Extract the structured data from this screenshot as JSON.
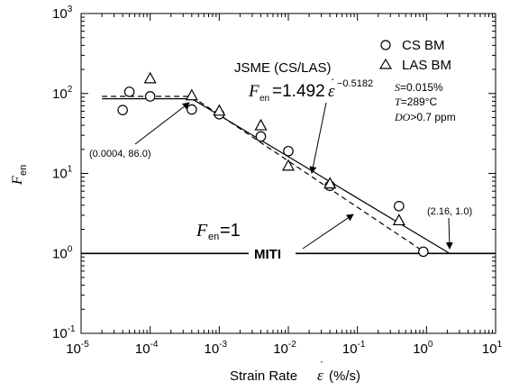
{
  "chart_data": {
    "type": "scatter",
    "scale": {
      "x": "log",
      "y": "log"
    },
    "xlim": [
      1e-05,
      10
    ],
    "ylim": [
      0.1,
      1000
    ],
    "x_ticks": [
      {
        "base": "10",
        "exp": "-5",
        "value": 1e-05
      },
      {
        "base": "10",
        "exp": "-4",
        "value": 0.0001
      },
      {
        "base": "10",
        "exp": "-3",
        "value": 0.001
      },
      {
        "base": "10",
        "exp": "-2",
        "value": 0.01
      },
      {
        "base": "10",
        "exp": "-1",
        "value": 0.1
      },
      {
        "base": "10",
        "exp": "0",
        "value": 1
      },
      {
        "base": "10",
        "exp": "1",
        "value": 10
      }
    ],
    "y_ticks": [
      {
        "base": "10",
        "exp": "-1",
        "value": 0.1
      },
      {
        "base": "10",
        "exp": "0",
        "value": 1
      },
      {
        "base": "10",
        "exp": "1",
        "value": 10
      },
      {
        "base": "10",
        "exp": "2",
        "value": 100
      },
      {
        "base": "10",
        "exp": "3",
        "value": 1000
      }
    ],
    "xlabel": {
      "text": "Strain Rate",
      "symbol": "ε",
      "unit": "(%/s)"
    },
    "ylabel": {
      "symbol": "F",
      "sub": "en"
    },
    "series": [
      {
        "name": "CS BM",
        "marker": "circle",
        "points": [
          [
            4e-05,
            62
          ],
          [
            5e-05,
            105
          ],
          [
            0.0001,
            92
          ],
          [
            0.0004,
            63
          ],
          [
            0.001,
            55
          ],
          [
            0.004,
            29
          ],
          [
            0.01,
            19
          ],
          [
            0.04,
            7
          ],
          [
            0.4,
            3.9
          ],
          [
            0.9,
            1.05
          ]
        ]
      },
      {
        "name": "LAS BM",
        "marker": "triangle",
        "points": [
          [
            0.0001,
            155
          ],
          [
            0.0004,
            95
          ],
          [
            0.001,
            61
          ],
          [
            0.004,
            40
          ],
          [
            0.01,
            12.5
          ],
          [
            0.04,
            7.5
          ],
          [
            0.4,
            2.6
          ]
        ]
      }
    ],
    "lines": [
      {
        "name": "JSME (CS/LAS)",
        "style": "solid",
        "points": [
          [
            2e-05,
            86
          ],
          [
            0.0004,
            86
          ],
          [
            2.16,
            1
          ],
          [
            10,
            1
          ]
        ]
      },
      {
        "name": "MITI",
        "style": "dashed",
        "points": [
          [
            2e-05,
            92
          ],
          [
            0.0004,
            92
          ],
          [
            1.0,
            1
          ],
          [
            10,
            1
          ]
        ]
      },
      {
        "name": "Fen=1",
        "style": "solid",
        "points": [
          [
            1e-05,
            1
          ],
          [
            10,
            1
          ]
        ]
      }
    ],
    "legend": {
      "position": "top-right",
      "items": [
        "CS BM",
        "LAS BM"
      ]
    },
    "conditions": [
      {
        "symbol": "S",
        "text": "=0.015%"
      },
      {
        "symbol": "T",
        "text": "=289°C"
      },
      {
        "symbol": "DO",
        "text": ">0.7 ppm"
      }
    ],
    "annotations": {
      "point_a": "(0.0004, 86.0)",
      "point_b": "(2.16, 1.0)",
      "jsme_label": "JSME (CS/LAS)",
      "equation": {
        "lhs_sym": "F",
        "lhs_sub": "en",
        "rhs": "=1.492",
        "rate_sym": "ε",
        "exp": "−0.5182"
      },
      "fen_one": {
        "sym": "F",
        "sub": "en",
        "rhs": "=1"
      },
      "miti_label": "MITI"
    }
  }
}
